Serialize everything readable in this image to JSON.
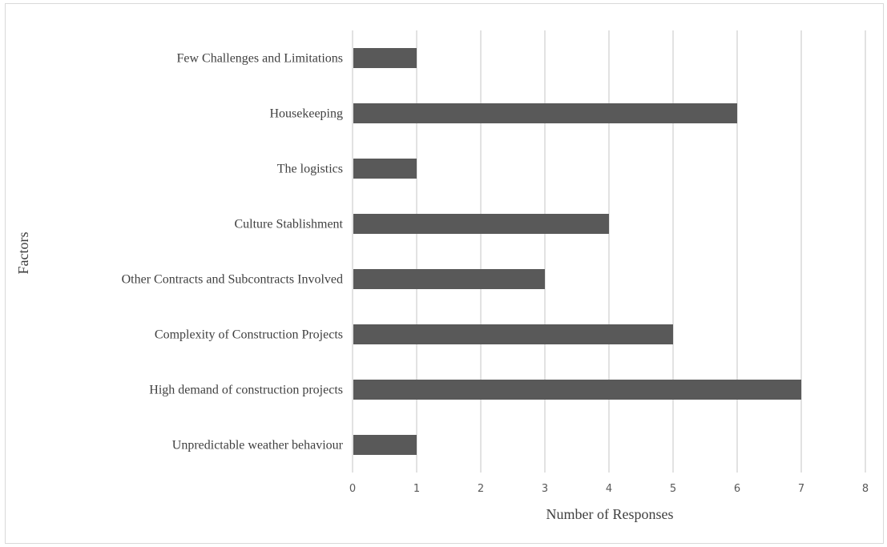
{
  "chart_data": {
    "type": "bar",
    "orientation": "horizontal",
    "title": "",
    "xlabel": "Number of Responses",
    "ylabel": "Factors",
    "categories": [
      "Unpredictable weather behaviour",
      "High demand of construction projects",
      "Complexity of Construction Projects",
      "Other Contracts and Subcontracts Involved",
      "Culture Stablishment",
      "The logistics",
      "Housekeeping",
      "Few Challenges and Limitations"
    ],
    "values": [
      1,
      7,
      5,
      3,
      4,
      1,
      6,
      1
    ],
    "xlim": [
      0,
      8
    ],
    "xticks": [
      "0",
      "1",
      "2",
      "3",
      "4",
      "5",
      "6",
      "7",
      "8"
    ],
    "grid": "vertical",
    "legend": "none",
    "bar_color": "#595959"
  }
}
